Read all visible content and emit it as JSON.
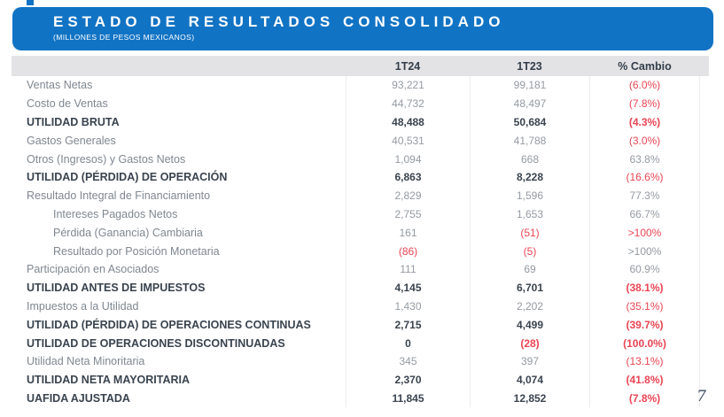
{
  "header": {
    "title": "ESTADO DE RESULTADOS CONSOLIDADO",
    "subtitle": "(MILLONES DE PESOS MEXICANOS)"
  },
  "colors": {
    "banner_blue": "#1173c4",
    "header_gray": "#e3e3e5",
    "negative_red": "#ea4553",
    "text_dark": "#39434e",
    "text_gray": "#7f8790"
  },
  "table": {
    "columns": [
      "",
      "1T24",
      "1T23",
      "% Cambio"
    ],
    "rows": [
      {
        "label": "Ventas Netas",
        "t24": "93,221",
        "t23": "99,181",
        "cambio": "(6.0%)"
      },
      {
        "label": "Costo de Ventas",
        "t24": "44,732",
        "t23": "48,497",
        "cambio": "(7.8%)"
      },
      {
        "label": "UTILIDAD BRUTA",
        "t24": "48,488",
        "t23": "50,684",
        "cambio": "(4.3%)"
      },
      {
        "label": "Gastos Generales",
        "t24": "40,531",
        "t23": "41,788",
        "cambio": "(3.0%)"
      },
      {
        "label": "Otros (Ingresos) y Gastos Netos",
        "t24": "1,094",
        "t23": "668",
        "cambio": "63.8%"
      },
      {
        "label": "UTILIDAD (PÉRDIDA) DE OPERACIÓN",
        "t24": "6,863",
        "t23": "8,228",
        "cambio": "(16.6%)"
      },
      {
        "label": "Resultado Integral de Financiamiento",
        "t24": "2,829",
        "t23": "1,596",
        "cambio": "77.3%"
      },
      {
        "label": "Intereses Pagados Netos",
        "t24": "2,755",
        "t23": "1,653",
        "cambio": "66.7%"
      },
      {
        "label": "Pérdida (Ganancia) Cambiaria",
        "t24": "161",
        "t23": "(51)",
        "cambio": ">100%"
      },
      {
        "label": "Resultado por Posición Monetaria",
        "t24": "(86)",
        "t23": "(5)",
        "cambio": ">100%"
      },
      {
        "label": "Participación en Asociados",
        "t24": "111",
        "t23": "69",
        "cambio": "60.9%"
      },
      {
        "label": "UTILIDAD ANTES DE IMPUESTOS",
        "t24": "4,145",
        "t23": "6,701",
        "cambio": "(38.1%)"
      },
      {
        "label": "Impuestos a la Utilidad",
        "t24": "1,430",
        "t23": "2,202",
        "cambio": "(35.1%)"
      },
      {
        "label": "UTILIDAD (PÉRDIDA) DE OPERACIONES CONTINUAS",
        "t24": "2,715",
        "t23": "4,499",
        "cambio": "(39.7%)"
      },
      {
        "label": "UTILIDAD DE OPERACIONES DISCONTINUADAS",
        "t24": "0",
        "t23": "(28)",
        "cambio": "(100.0%)"
      },
      {
        "label": "Utilidad Neta Minoritaria",
        "t24": "345",
        "t23": "397",
        "cambio": "(13.1%)"
      },
      {
        "label": "UTILIDAD NETA MAYORITARIA",
        "t24": "2,370",
        "t23": "4,074",
        "cambio": "(41.8%)"
      },
      {
        "label": "UAFIDA AJUSTADA",
        "t24": "11,845",
        "t23": "12,852",
        "cambio": "(7.8%)"
      }
    ]
  },
  "page": {
    "number": "7"
  }
}
